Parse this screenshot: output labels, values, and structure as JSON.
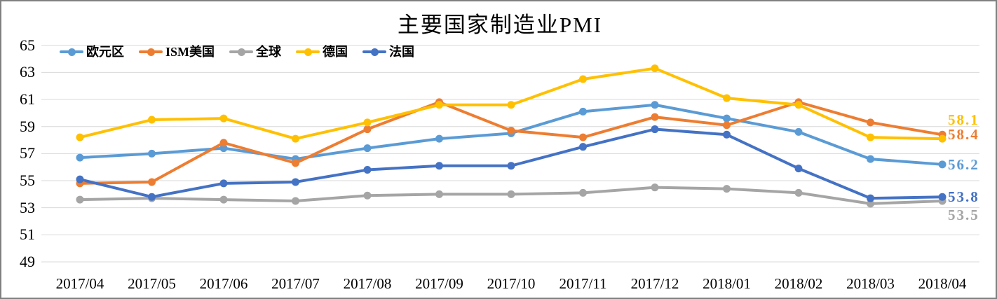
{
  "title": "主要国家制造业PMI",
  "chart_data": {
    "type": "line",
    "title": "主要国家制造业PMI",
    "categories": [
      "2017/04",
      "2017/05",
      "2017/06",
      "2017/07",
      "2017/08",
      "2017/09",
      "2017/10",
      "2017/11",
      "2017/12",
      "2018/01",
      "2018/02",
      "2018/03",
      "2018/04"
    ],
    "series": [
      {
        "key": "eurozone",
        "name": "欧元区",
        "color": "#5B9BD5",
        "values": [
          56.7,
          57.0,
          57.4,
          56.6,
          57.4,
          58.1,
          58.5,
          60.1,
          60.6,
          59.6,
          58.6,
          56.6,
          56.2
        ],
        "end_label": "56.2"
      },
      {
        "key": "ism-us",
        "name": "ISM美国",
        "color": "#ED7D31",
        "values": [
          54.8,
          54.9,
          57.8,
          56.3,
          58.8,
          60.8,
          58.7,
          58.2,
          59.7,
          59.1,
          60.8,
          59.3,
          58.4
        ],
        "end_label": "58.4"
      },
      {
        "key": "global",
        "name": "全球",
        "color": "#A5A5A5",
        "values": [
          53.6,
          53.7,
          53.6,
          53.5,
          53.9,
          54.0,
          54.0,
          54.1,
          54.5,
          54.4,
          54.1,
          53.3,
          53.5
        ],
        "end_label": "53.5"
      },
      {
        "key": "germany",
        "name": "德国",
        "color": "#FFC000",
        "values": [
          58.2,
          59.5,
          59.6,
          58.1,
          59.3,
          60.6,
          60.6,
          62.5,
          63.3,
          61.1,
          60.6,
          58.2,
          58.1
        ],
        "end_label": "58.1"
      },
      {
        "key": "france",
        "name": "法国",
        "color": "#4472C4",
        "values": [
          55.1,
          53.8,
          54.8,
          54.9,
          55.8,
          56.1,
          56.1,
          57.5,
          58.8,
          58.4,
          55.9,
          53.7,
          53.8
        ],
        "end_label": "53.8"
      }
    ],
    "y_ticks": [
      65,
      63,
      61,
      59,
      57,
      55,
      53,
      51,
      49
    ],
    "ylim": [
      49,
      65
    ],
    "grid": "horizontal-only",
    "gridline_color": "#D9D9D9",
    "legend_position": "top-left",
    "xlabel": "",
    "ylabel": ""
  }
}
